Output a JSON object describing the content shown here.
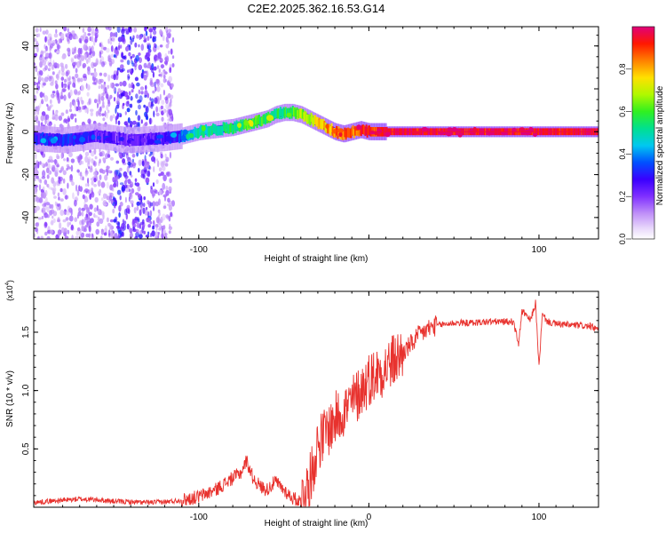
{
  "title": "C2E2.2025.362.16.53.G14",
  "chart_data": [
    {
      "type": "heatmap",
      "title": "C2E2.2025.362.16.53.G14",
      "xlabel": "Height of straight line (km)",
      "ylabel": "Frequency (Hz)",
      "xlim": [
        -197,
        135
      ],
      "ylim": [
        -50,
        49
      ],
      "xticks": [
        -100,
        0,
        100
      ],
      "xtick_labels": [
        "-100",
        "",
        "100"
      ],
      "yticks": [
        -40,
        -20,
        0,
        20,
        40
      ],
      "ytick_labels": [
        "-40",
        "-20",
        "0",
        "20",
        "40"
      ],
      "colorbar": {
        "label": "Normalized spectral amplitude",
        "range": [
          0,
          1
        ],
        "ticks": [
          0.0,
          0.2,
          0.4,
          0.6,
          0.8
        ],
        "tick_labels": [
          "0.0",
          "0.2",
          "0.4",
          "0.6",
          "0.8"
        ],
        "colors": [
          "#ffffff",
          "#d9b8f8",
          "#a040ff",
          "#5000ff",
          "#0000ff",
          "#00c0ff",
          "#00e080",
          "#40ff00",
          "#ffff00",
          "#ffa000",
          "#ff2000",
          "#e00070"
        ]
      },
      "ridge": {
        "x": [
          -197,
          -180,
          -160,
          -140,
          -120,
          -110,
          -100,
          -90,
          -80,
          -70,
          -60,
          -55,
          -50,
          -45,
          -40,
          -35,
          -30,
          -25,
          -20,
          -15,
          -10,
          -5,
          0,
          10,
          135
        ],
        "frequency": [
          -3,
          -4,
          -2,
          -4,
          -3,
          -2,
          0,
          1,
          2,
          4,
          6,
          8,
          9,
          9,
          8,
          6,
          4,
          2,
          0,
          -1,
          0,
          1,
          0,
          0,
          0
        ],
        "amplitude": [
          0.3,
          0.3,
          0.25,
          0.2,
          0.25,
          0.35,
          0.5,
          0.5,
          0.55,
          0.6,
          0.6,
          0.55,
          0.55,
          0.6,
          0.65,
          0.7,
          0.75,
          0.8,
          0.85,
          0.85,
          0.85,
          0.9,
          0.9,
          0.95,
          0.95
        ]
      },
      "scatter_band": {
        "x_range": [
          -197,
          -115
        ],
        "note": "broadband low-amplitude speckle"
      }
    },
    {
      "type": "line",
      "xlabel": "Height of straight line (km)",
      "ylabel": "SNR (10 * v/v)",
      "y_multiplier": "(x10^4)",
      "xlim": [
        -197,
        135
      ],
      "ylim": [
        0,
        18500
      ],
      "xticks": [
        -100,
        0,
        100
      ],
      "xtick_labels": [
        "-100",
        "0",
        "100"
      ],
      "yticks": [
        5000,
        10000,
        15000
      ],
      "ytick_labels": [
        "0.5",
        "1.0",
        "1.5"
      ],
      "color": "#e8322e",
      "series": [
        {
          "name": "SNR",
          "x": [
            -197,
            -190,
            -180,
            -170,
            -160,
            -150,
            -140,
            -130,
            -120,
            -110,
            -100,
            -95,
            -90,
            -85,
            -80,
            -75,
            -72,
            -68,
            -64,
            -60,
            -55,
            -50,
            -45,
            -40,
            -35,
            -32,
            -30,
            -27,
            -25,
            -22,
            -20,
            -17,
            -15,
            -12,
            -10,
            -7,
            -5,
            -2,
            0,
            5,
            10,
            15,
            20,
            25,
            30,
            35,
            40,
            50,
            60,
            70,
            80,
            85,
            88,
            90,
            95,
            98,
            100,
            102,
            105,
            110,
            120,
            130,
            135
          ],
          "y": [
            400,
            500,
            600,
            700,
            650,
            500,
            450,
            400,
            450,
            600,
            900,
            1200,
            1500,
            2000,
            2500,
            3000,
            4000,
            2500,
            1800,
            1500,
            2200,
            1500,
            800,
            500,
            2000,
            4000,
            5500,
            6000,
            6500,
            7000,
            7500,
            8000,
            8300,
            8600,
            9000,
            9500,
            10000,
            10500,
            11000,
            11500,
            12000,
            12600,
            13200,
            14000,
            14800,
            15300,
            15600,
            15800,
            15800,
            15900,
            15900,
            15900,
            14000,
            16800,
            16000,
            17500,
            12000,
            16500,
            15900,
            15700,
            15600,
            15500,
            15200
          ]
        }
      ]
    }
  ]
}
